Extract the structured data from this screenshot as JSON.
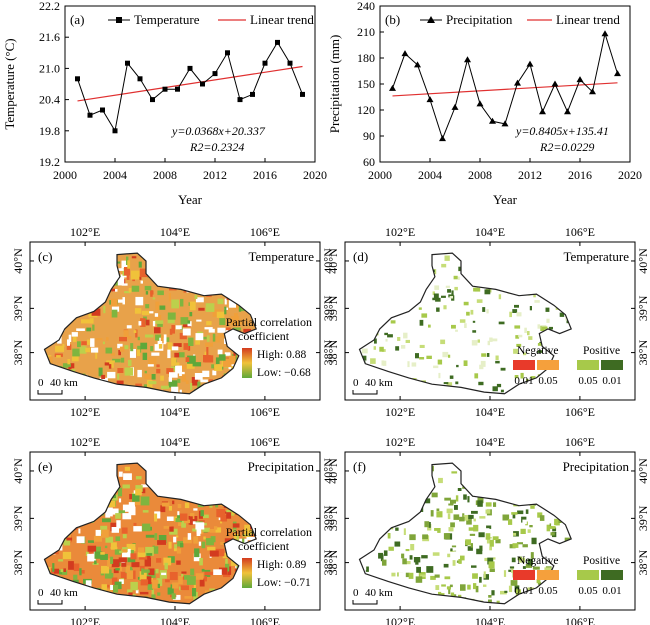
{
  "chart_data": [
    {
      "panel": "(a)",
      "type": "line",
      "x": [
        2001,
        2002,
        2003,
        2004,
        2005,
        2006,
        2007,
        2008,
        2009,
        2010,
        2011,
        2012,
        2013,
        2014,
        2015,
        2016,
        2017,
        2018,
        2019
      ],
      "series": [
        {
          "name": "Temperature",
          "marker": "square",
          "color": "#000000",
          "values": [
            20.8,
            20.1,
            20.2,
            19.8,
            21.1,
            20.8,
            20.4,
            20.6,
            20.6,
            21.0,
            20.7,
            20.9,
            21.3,
            20.4,
            20.5,
            21.1,
            21.5,
            21.1,
            20.5
          ]
        },
        {
          "name": "Linear trend",
          "color": "#e03030",
          "slope": 0.0368,
          "intercept_at_2000": 20.337
        }
      ],
      "xlabel": "Year",
      "ylabel": "Temperature (°C)",
      "xlim": [
        2000,
        2020
      ],
      "ylim": [
        19.2,
        22.2
      ],
      "xticks": [
        "2000",
        "2004",
        "2008",
        "2012",
        "2016",
        "2020"
      ],
      "yticks": [
        "19.2",
        "19.8",
        "20.4",
        "21.0",
        "21.6",
        "22.2"
      ],
      "equation": "y=0.0368x+20.337",
      "r2": "R2=0.2324",
      "legend": "top"
    },
    {
      "panel": "(b)",
      "type": "line",
      "x": [
        2001,
        2002,
        2003,
        2004,
        2005,
        2006,
        2007,
        2008,
        2009,
        2010,
        2011,
        2012,
        2013,
        2014,
        2015,
        2016,
        2017,
        2018,
        2019
      ],
      "series": [
        {
          "name": "Precipitation",
          "marker": "triangle",
          "color": "#000000",
          "values": [
            145,
            185,
            172,
            132,
            87,
            123,
            178,
            127,
            107,
            104,
            151,
            173,
            118,
            150,
            118,
            155,
            141,
            208,
            162
          ]
        },
        {
          "name": "Linear trend",
          "color": "#e03030",
          "slope": 0.8405,
          "intercept_at_2000": 135.41
        }
      ],
      "xlabel": "Year",
      "ylabel": "Precipitation (mm)",
      "xlim": [
        2000,
        2020
      ],
      "ylim": [
        60,
        240
      ],
      "xticks": [
        "2000",
        "2004",
        "2008",
        "2012",
        "2016",
        "2020"
      ],
      "yticks": [
        "60",
        "90",
        "120",
        "150",
        "180",
        "210",
        "240"
      ],
      "equation": "y=0.8405x+135.41",
      "r2": "R2=0.0229",
      "legend": "top"
    }
  ],
  "maps": {
    "lon_ticks": [
      "102°E",
      "104°E",
      "106°E"
    ],
    "lat_ticks": [
      "38°N",
      "39°N",
      "40°N"
    ],
    "scale_label": "40 km",
    "scale_zero": "0",
    "c": {
      "panel": "(c)",
      "title": "Temperature",
      "legend_title_1": "Partial correlation",
      "legend_title_2": "coefficient",
      "high": "High: 0.88",
      "low": "Low: −0.68"
    },
    "d": {
      "panel": "(d)",
      "title": "Temperature",
      "neg": "Negative",
      "pos": "Positive",
      "levels": [
        "0.01",
        "0.05",
        "0.05",
        "0.01"
      ]
    },
    "e": {
      "panel": "(e)",
      "title": "Precipitation",
      "legend_title_1": "Partial correlation",
      "legend_title_2": "coefficient",
      "high": "High: 0.89",
      "low": "Low: −0.71"
    },
    "f": {
      "panel": "(f)",
      "title": "Precipitation",
      "neg": "Negative",
      "pos": "Positive",
      "levels": [
        "0.01",
        "0.05",
        "0.05",
        "0.01"
      ]
    },
    "colors": {
      "neg_strong": "#e83a2a",
      "neg_weak": "#f5a03c",
      "pos_weak": "#a7c94a",
      "pos_strong": "#3e6b22",
      "grad_high": "#d33b1f",
      "grad_mid": "#f0c23a",
      "grad_low": "#5fa83a"
    }
  }
}
